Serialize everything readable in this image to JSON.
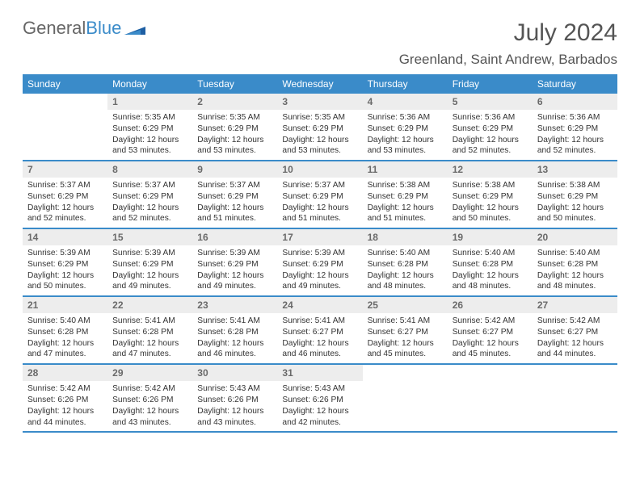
{
  "brand": {
    "name1": "General",
    "name2": "Blue"
  },
  "title": "July 2024",
  "location": "Greenland, Saint Andrew, Barbados",
  "colors": {
    "header_bg": "#3a8bc9",
    "header_text": "#ffffff",
    "daynum_bg": "#ededed",
    "daynum_text": "#6a6a6a",
    "body_text": "#333333",
    "title_text": "#555555",
    "page_bg": "#ffffff"
  },
  "typography": {
    "title_fontsize": 30,
    "location_fontsize": 17,
    "header_fontsize": 12,
    "daynum_fontsize": 12,
    "body_fontsize": 10.2
  },
  "weekday_headers": [
    "Sunday",
    "Monday",
    "Tuesday",
    "Wednesday",
    "Thursday",
    "Friday",
    "Saturday"
  ],
  "weeks": [
    [
      {
        "n": "",
        "sunrise": "",
        "sunset": "",
        "daylight": ""
      },
      {
        "n": "1",
        "sunrise": "Sunrise: 5:35 AM",
        "sunset": "Sunset: 6:29 PM",
        "daylight": "Daylight: 12 hours and 53 minutes."
      },
      {
        "n": "2",
        "sunrise": "Sunrise: 5:35 AM",
        "sunset": "Sunset: 6:29 PM",
        "daylight": "Daylight: 12 hours and 53 minutes."
      },
      {
        "n": "3",
        "sunrise": "Sunrise: 5:35 AM",
        "sunset": "Sunset: 6:29 PM",
        "daylight": "Daylight: 12 hours and 53 minutes."
      },
      {
        "n": "4",
        "sunrise": "Sunrise: 5:36 AM",
        "sunset": "Sunset: 6:29 PM",
        "daylight": "Daylight: 12 hours and 53 minutes."
      },
      {
        "n": "5",
        "sunrise": "Sunrise: 5:36 AM",
        "sunset": "Sunset: 6:29 PM",
        "daylight": "Daylight: 12 hours and 52 minutes."
      },
      {
        "n": "6",
        "sunrise": "Sunrise: 5:36 AM",
        "sunset": "Sunset: 6:29 PM",
        "daylight": "Daylight: 12 hours and 52 minutes."
      }
    ],
    [
      {
        "n": "7",
        "sunrise": "Sunrise: 5:37 AM",
        "sunset": "Sunset: 6:29 PM",
        "daylight": "Daylight: 12 hours and 52 minutes."
      },
      {
        "n": "8",
        "sunrise": "Sunrise: 5:37 AM",
        "sunset": "Sunset: 6:29 PM",
        "daylight": "Daylight: 12 hours and 52 minutes."
      },
      {
        "n": "9",
        "sunrise": "Sunrise: 5:37 AM",
        "sunset": "Sunset: 6:29 PM",
        "daylight": "Daylight: 12 hours and 51 minutes."
      },
      {
        "n": "10",
        "sunrise": "Sunrise: 5:37 AM",
        "sunset": "Sunset: 6:29 PM",
        "daylight": "Daylight: 12 hours and 51 minutes."
      },
      {
        "n": "11",
        "sunrise": "Sunrise: 5:38 AM",
        "sunset": "Sunset: 6:29 PM",
        "daylight": "Daylight: 12 hours and 51 minutes."
      },
      {
        "n": "12",
        "sunrise": "Sunrise: 5:38 AM",
        "sunset": "Sunset: 6:29 PM",
        "daylight": "Daylight: 12 hours and 50 minutes."
      },
      {
        "n": "13",
        "sunrise": "Sunrise: 5:38 AM",
        "sunset": "Sunset: 6:29 PM",
        "daylight": "Daylight: 12 hours and 50 minutes."
      }
    ],
    [
      {
        "n": "14",
        "sunrise": "Sunrise: 5:39 AM",
        "sunset": "Sunset: 6:29 PM",
        "daylight": "Daylight: 12 hours and 50 minutes."
      },
      {
        "n": "15",
        "sunrise": "Sunrise: 5:39 AM",
        "sunset": "Sunset: 6:29 PM",
        "daylight": "Daylight: 12 hours and 49 minutes."
      },
      {
        "n": "16",
        "sunrise": "Sunrise: 5:39 AM",
        "sunset": "Sunset: 6:29 PM",
        "daylight": "Daylight: 12 hours and 49 minutes."
      },
      {
        "n": "17",
        "sunrise": "Sunrise: 5:39 AM",
        "sunset": "Sunset: 6:29 PM",
        "daylight": "Daylight: 12 hours and 49 minutes."
      },
      {
        "n": "18",
        "sunrise": "Sunrise: 5:40 AM",
        "sunset": "Sunset: 6:28 PM",
        "daylight": "Daylight: 12 hours and 48 minutes."
      },
      {
        "n": "19",
        "sunrise": "Sunrise: 5:40 AM",
        "sunset": "Sunset: 6:28 PM",
        "daylight": "Daylight: 12 hours and 48 minutes."
      },
      {
        "n": "20",
        "sunrise": "Sunrise: 5:40 AM",
        "sunset": "Sunset: 6:28 PM",
        "daylight": "Daylight: 12 hours and 48 minutes."
      }
    ],
    [
      {
        "n": "21",
        "sunrise": "Sunrise: 5:40 AM",
        "sunset": "Sunset: 6:28 PM",
        "daylight": "Daylight: 12 hours and 47 minutes."
      },
      {
        "n": "22",
        "sunrise": "Sunrise: 5:41 AM",
        "sunset": "Sunset: 6:28 PM",
        "daylight": "Daylight: 12 hours and 47 minutes."
      },
      {
        "n": "23",
        "sunrise": "Sunrise: 5:41 AM",
        "sunset": "Sunset: 6:28 PM",
        "daylight": "Daylight: 12 hours and 46 minutes."
      },
      {
        "n": "24",
        "sunrise": "Sunrise: 5:41 AM",
        "sunset": "Sunset: 6:27 PM",
        "daylight": "Daylight: 12 hours and 46 minutes."
      },
      {
        "n": "25",
        "sunrise": "Sunrise: 5:41 AM",
        "sunset": "Sunset: 6:27 PM",
        "daylight": "Daylight: 12 hours and 45 minutes."
      },
      {
        "n": "26",
        "sunrise": "Sunrise: 5:42 AM",
        "sunset": "Sunset: 6:27 PM",
        "daylight": "Daylight: 12 hours and 45 minutes."
      },
      {
        "n": "27",
        "sunrise": "Sunrise: 5:42 AM",
        "sunset": "Sunset: 6:27 PM",
        "daylight": "Daylight: 12 hours and 44 minutes."
      }
    ],
    [
      {
        "n": "28",
        "sunrise": "Sunrise: 5:42 AM",
        "sunset": "Sunset: 6:26 PM",
        "daylight": "Daylight: 12 hours and 44 minutes."
      },
      {
        "n": "29",
        "sunrise": "Sunrise: 5:42 AM",
        "sunset": "Sunset: 6:26 PM",
        "daylight": "Daylight: 12 hours and 43 minutes."
      },
      {
        "n": "30",
        "sunrise": "Sunrise: 5:43 AM",
        "sunset": "Sunset: 6:26 PM",
        "daylight": "Daylight: 12 hours and 43 minutes."
      },
      {
        "n": "31",
        "sunrise": "Sunrise: 5:43 AM",
        "sunset": "Sunset: 6:26 PM",
        "daylight": "Daylight: 12 hours and 42 minutes."
      },
      {
        "n": "",
        "sunrise": "",
        "sunset": "",
        "daylight": ""
      },
      {
        "n": "",
        "sunrise": "",
        "sunset": "",
        "daylight": ""
      },
      {
        "n": "",
        "sunrise": "",
        "sunset": "",
        "daylight": ""
      }
    ]
  ]
}
